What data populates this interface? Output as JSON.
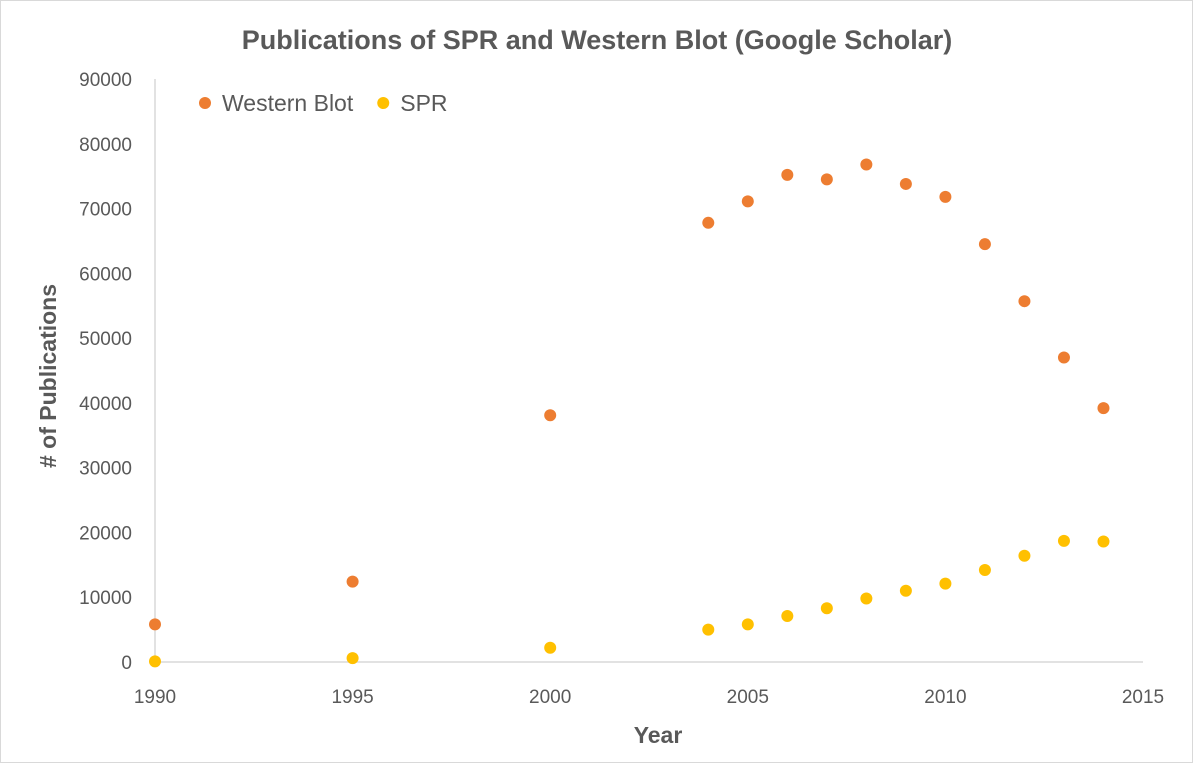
{
  "chart_data": {
    "type": "scatter",
    "title": "Publications of SPR and Western Blot (Google Scholar)",
    "xlabel": "Year",
    "ylabel": "# of Publications",
    "xlim": [
      1990,
      2015
    ],
    "ylim": [
      0,
      90000
    ],
    "x_ticks": [
      1990,
      1995,
      2000,
      2005,
      2010,
      2015
    ],
    "y_ticks": [
      0,
      10000,
      20000,
      30000,
      40000,
      50000,
      60000,
      70000,
      80000,
      90000
    ],
    "grid": false,
    "legend_position": "top-left",
    "series": [
      {
        "name": "Western Blot",
        "color": "#ED7D31",
        "points": [
          [
            1990,
            5800
          ],
          [
            1995,
            12400
          ],
          [
            2000,
            38100
          ],
          [
            2004,
            67800
          ],
          [
            2005,
            71100
          ],
          [
            2006,
            75200
          ],
          [
            2007,
            74500
          ],
          [
            2008,
            76800
          ],
          [
            2009,
            73800
          ],
          [
            2010,
            71800
          ],
          [
            2011,
            64500
          ],
          [
            2012,
            55700
          ],
          [
            2013,
            47000
          ],
          [
            2014,
            39200
          ]
        ]
      },
      {
        "name": "SPR",
        "color": "#FFC000",
        "points": [
          [
            1990,
            100
          ],
          [
            1995,
            600
          ],
          [
            2000,
            2200
          ],
          [
            2004,
            5000
          ],
          [
            2005,
            5800
          ],
          [
            2006,
            7100
          ],
          [
            2007,
            8300
          ],
          [
            2008,
            9800
          ],
          [
            2009,
            11000
          ],
          [
            2010,
            12100
          ],
          [
            2011,
            14200
          ],
          [
            2012,
            16400
          ],
          [
            2013,
            18700
          ],
          [
            2014,
            18600
          ]
        ]
      }
    ]
  }
}
